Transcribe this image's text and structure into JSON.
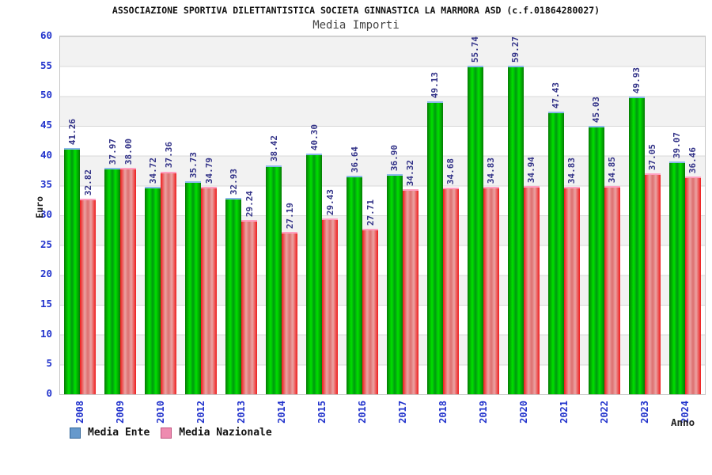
{
  "title": "ASSOCIAZIONE SPORTIVA DILETTANTISTICA SOCIETA GINNASTICA LA MARMORA ASD (c.f.01864280027)",
  "subtitle": "Media Importi",
  "y_axis_title": "Euro",
  "x_axis_title": "Anno",
  "legend": [
    {
      "label": "Media Ente",
      "swatch": "#6699cc",
      "border": "#336699"
    },
    {
      "label": "Media Nazionale",
      "swatch": "#ee8bb0",
      "border": "#c05580"
    }
  ],
  "colors": {
    "tick_label": "#2233cc",
    "value_label": "#333388",
    "band_gray": "#f2f2f2",
    "gridline": "#d8d8d8",
    "bar_ente_main": "#00e100",
    "bar_ente_edge": "#057a05",
    "bar_ente_cap": "#8ab8ea",
    "bar_nazionale_main": "#ee1c1c",
    "bar_nazionale_center": "#eba3a3",
    "bar_nazionale_cap": "#ff9fc0"
  },
  "chart_data": {
    "type": "bar",
    "title": "ASSOCIAZIONE SPORTIVA DILETTANTISTICA SOCIETA GINNASTICA LA MARMORA ASD (c.f.01864280027)",
    "subtitle": "Media Importi",
    "xlabel": "Anno",
    "ylabel": "Euro",
    "ylim": [
      0,
      60
    ],
    "ytick_step": 5,
    "grid": "horizontal gridlines with alternating gray/white bands",
    "legend_position": "bottom-left",
    "categories": [
      "2008",
      "2009",
      "2010",
      "2012",
      "2013",
      "2014",
      "2015",
      "2016",
      "2017",
      "2018",
      "2019",
      "2020",
      "2021",
      "2022",
      "2023",
      "2024"
    ],
    "series": [
      {
        "name": "Media Ente",
        "values": [
          41.26,
          37.97,
          34.72,
          35.73,
          32.93,
          38.42,
          40.3,
          36.64,
          36.9,
          49.13,
          55.74,
          59.27,
          47.43,
          45.03,
          49.93,
          39.07
        ]
      },
      {
        "name": "Media Nazionale",
        "values": [
          32.82,
          38.0,
          37.36,
          34.79,
          29.24,
          27.19,
          29.43,
          27.71,
          34.32,
          34.68,
          34.83,
          34.94,
          34.83,
          34.85,
          37.05,
          36.46
        ]
      }
    ]
  }
}
